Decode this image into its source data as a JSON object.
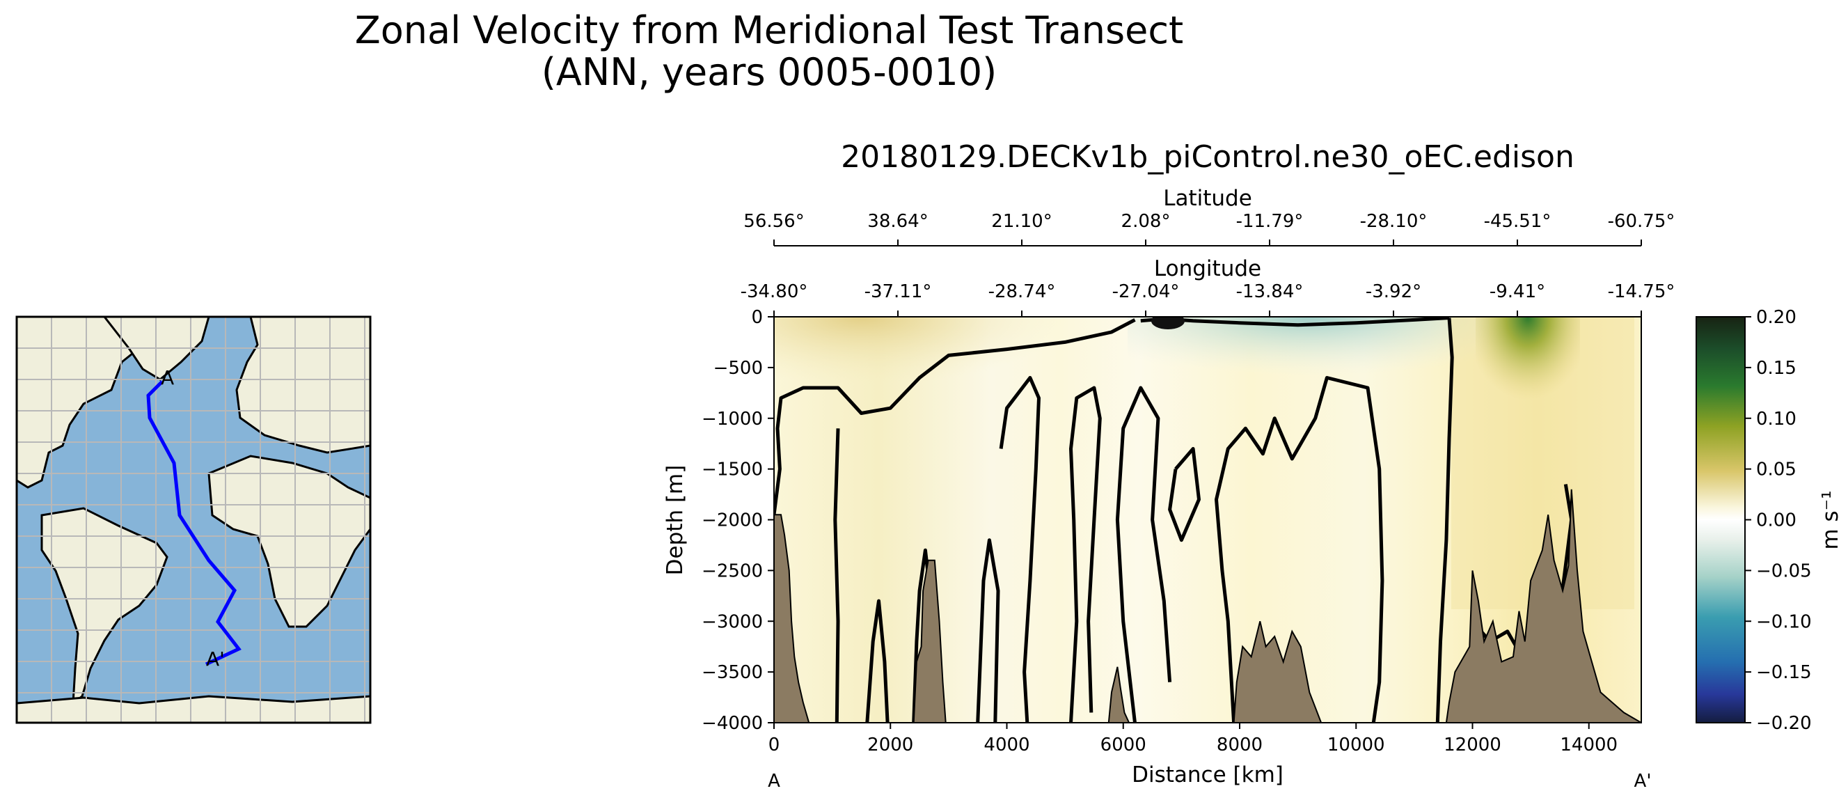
{
  "figure": {
    "suptitle_line1": "Zonal Velocity from Meridional Test Transect",
    "suptitle_line2": "(ANN, years 0005-0010)"
  },
  "map": {
    "transect_start_label": "A",
    "transect_end_label": "A'",
    "colors": {
      "ocean": "#86b4d8",
      "land": "#f0efdc",
      "transect": "#0000ff",
      "grid": "#b8b8b8"
    }
  },
  "section": {
    "title": "20180129.DECKv1b_piControl.ne30_oEC.edison",
    "colors": {
      "bathymetry": "#8b7b62",
      "contour": "#000000"
    }
  },
  "chart_data": {
    "type": "heatmap",
    "title": "20180129.DECKv1b_piControl.ne30_oEC.edison",
    "xlabel": "Distance [km]",
    "ylabel": "Depth [m]",
    "xlim": [
      0,
      14900
    ],
    "ylim": [
      -4000,
      0
    ],
    "x_ticks": [
      0,
      2000,
      4000,
      6000,
      8000,
      10000,
      12000,
      14000
    ],
    "x_tick_labels": [
      "0",
      "2000",
      "4000",
      "6000",
      "8000",
      "10000",
      "12000",
      "14000"
    ],
    "y_ticks": [
      0,
      -500,
      -1000,
      -1500,
      -2000,
      -2500,
      -3000,
      -3500,
      -4000
    ],
    "y_tick_labels": [
      "0",
      "−500",
      "−1000",
      "−1500",
      "−2000",
      "−2500",
      "−3000",
      "−3500",
      "−4000"
    ],
    "x_end_labels": [
      "A",
      "A'"
    ],
    "secondary_axes": [
      {
        "label": "Latitude",
        "tick_labels": [
          "56.56°",
          "38.64°",
          "21.10°",
          "2.08°",
          "-11.79°",
          "-28.10°",
          "-45.51°",
          "-60.75°"
        ]
      },
      {
        "label": "Longitude",
        "tick_labels": [
          "-34.80°",
          "-37.11°",
          "-28.74°",
          "-27.04°",
          "-13.84°",
          "-3.92°",
          "-9.41°",
          "-14.75°"
        ]
      }
    ],
    "colorbar": {
      "label": "m s⁻¹",
      "vmin": -0.2,
      "vmax": 0.2,
      "ticks": [
        0.2,
        0.15,
        0.1,
        0.05,
        0.0,
        -0.05,
        -0.1,
        -0.15,
        -0.2
      ],
      "tick_labels": [
        "0.20",
        "0.15",
        "0.10",
        "0.05",
        "0.00",
        "−0.05",
        "−0.10",
        "−0.15",
        "−0.20"
      ],
      "colormap_stops": [
        "#172313",
        "#1c4e2a",
        "#2a7a2e",
        "#8ea224",
        "#d9c66a",
        "#faf6de",
        "#ffffff",
        "#e8f0ea",
        "#a6d2c8",
        "#3a9db0",
        "#256fb0",
        "#28389a",
        "#141d40"
      ]
    },
    "zero_contour_note": "",
    "features": {
      "positive_core_km": [
        13000
      ],
      "positive_core_value": 0.12
    }
  }
}
